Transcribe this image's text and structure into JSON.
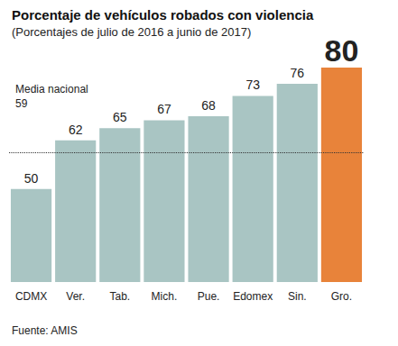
{
  "chart_data": {
    "type": "bar",
    "title": "Porcentaje de vehículos robados con violencia",
    "subtitle": "(Porcentajes de julio de 2016 a junio de 2017)",
    "categories": [
      "CDMX",
      "Ver.",
      "Tab.",
      "Mich.",
      "Pue.",
      "Edomex",
      "Sin.",
      "Gro."
    ],
    "values": [
      50,
      62,
      65,
      67,
      68,
      73,
      76,
      80
    ],
    "colors": [
      "#a9c5c3",
      "#a9c5c3",
      "#a9c5c3",
      "#a9c5c3",
      "#a9c5c3",
      "#a9c5c3",
      "#a9c5c3",
      "#e8833a"
    ],
    "ylim": [
      27,
      80
    ],
    "yticks": [],
    "tick_labels": "x",
    "data_labels": true,
    "grid": false,
    "annotations": [
      {
        "text": "Media nacional",
        "value": 59
      }
    ],
    "source": "Fuente: AMIS"
  }
}
